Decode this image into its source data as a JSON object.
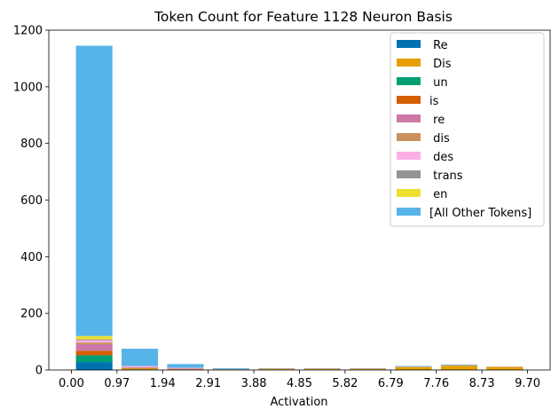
{
  "chart_data": {
    "type": "bar",
    "stacked": true,
    "title": "Token Count for Feature 1128 Neuron Basis",
    "xlabel": "Activation",
    "ylabel": "",
    "xlim": [
      -0.48,
      10.18
    ],
    "ylim": [
      0,
      1200
    ],
    "x_ticks": [
      "0.00",
      "0.97",
      "1.94",
      "2.91",
      "3.88",
      "4.85",
      "5.82",
      "6.79",
      "7.76",
      "8.73",
      "9.70"
    ],
    "y_ticks": [
      "0",
      "200",
      "400",
      "600",
      "800",
      "1000",
      "1200"
    ],
    "bin_starts": [
      0.0,
      0.97,
      1.94,
      2.91,
      3.88,
      4.85,
      5.82,
      6.79,
      7.76,
      8.73
    ],
    "bin_width": 0.97,
    "bar_width": 0.8,
    "series": [
      {
        "name": " Re",
        "color": "#0072b2",
        "values": [
          28,
          2,
          1,
          1,
          0,
          0,
          0,
          0,
          0,
          0
        ]
      },
      {
        "name": " Dis",
        "color": "#e69f00",
        "values": [
          0,
          3,
          1,
          1,
          3,
          3,
          3,
          10,
          15,
          10
        ]
      },
      {
        "name": " un",
        "color": "#009e73",
        "values": [
          24,
          0,
          0,
          0,
          0,
          0,
          0,
          0,
          0,
          0
        ]
      },
      {
        "name": "is",
        "color": "#d55e00",
        "values": [
          16,
          2,
          1,
          0,
          0,
          0,
          0,
          0,
          0,
          0
        ]
      },
      {
        "name": " re",
        "color": "#cc79a7",
        "values": [
          23,
          1,
          2,
          0,
          0,
          0,
          0,
          0,
          0,
          0
        ]
      },
      {
        "name": " dis",
        "color": "#ca9161",
        "values": [
          6,
          2,
          1,
          1,
          2,
          2,
          2,
          2,
          2,
          2
        ]
      },
      {
        "name": " des",
        "color": "#fbafe4",
        "values": [
          8,
          4,
          2,
          0,
          0,
          0,
          0,
          0,
          0,
          0
        ]
      },
      {
        "name": " trans",
        "color": "#949494",
        "values": [
          3,
          0,
          0,
          0,
          0,
          0,
          0,
          0,
          0,
          0
        ]
      },
      {
        "name": " en",
        "color": "#ece133",
        "values": [
          12,
          0,
          0,
          0,
          0,
          0,
          0,
          0,
          0,
          0
        ]
      },
      {
        "name": "[All Other Tokens]",
        "color": "#56b4e9",
        "values": [
          1025,
          61,
          13,
          3,
          1,
          1,
          1,
          2,
          2,
          0
        ]
      }
    ],
    "grid": false,
    "legend": "top-right"
  }
}
